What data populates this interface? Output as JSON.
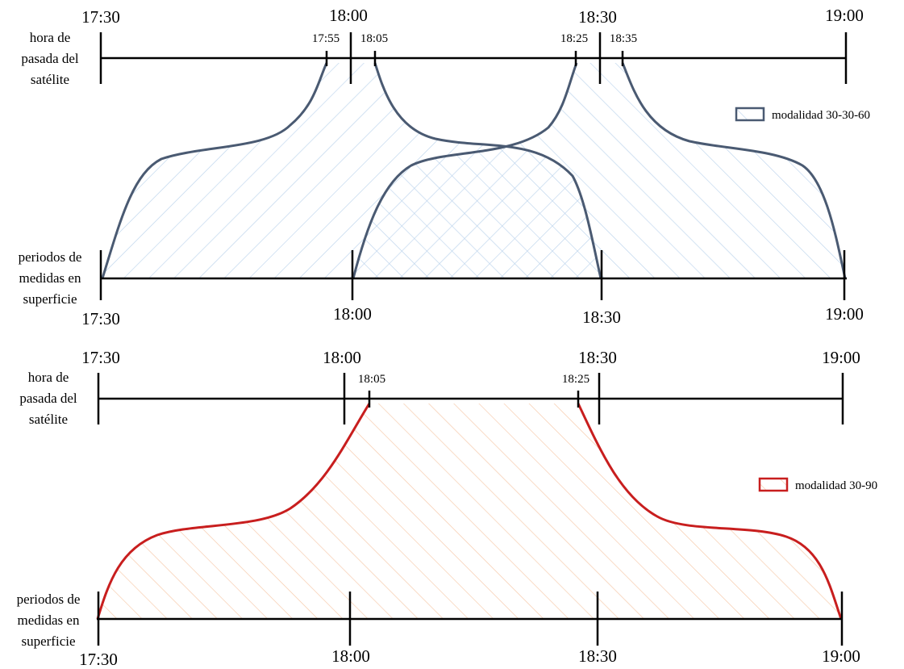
{
  "colors": {
    "top_curve": "#4a5a72",
    "top_hatch": "#bcd4ec",
    "bottom_curve": "#c81e1e",
    "bottom_hatch": "#f6c8a8"
  },
  "top": {
    "sat_label": [
      "hora de",
      "pasada del",
      "satélite"
    ],
    "surf_label": [
      "periodos de",
      "medidas en",
      "superficie"
    ],
    "sat_ticks": [
      "17:30",
      "18:00",
      "18:30",
      "19:00"
    ],
    "sat_ticks_small": [
      "17:55",
      "18:05",
      "18:25",
      "18:35"
    ],
    "surf_ticks": [
      "17:30",
      "18:00",
      "18:30",
      "19:00"
    ],
    "legend": "modalidad 30-30-60"
  },
  "bottom": {
    "sat_label": [
      "hora de",
      "pasada del",
      "satélite"
    ],
    "surf_label": [
      "periodos de",
      "medidas en",
      "superficie"
    ],
    "sat_ticks": [
      "17:30",
      "18:00",
      "18:30",
      "19:00"
    ],
    "sat_ticks_small": [
      "18:05",
      "18:25"
    ],
    "surf_ticks": [
      "17:30",
      "18:00",
      "18:30",
      "19:00"
    ],
    "legend": "modalidad 30-90"
  }
}
